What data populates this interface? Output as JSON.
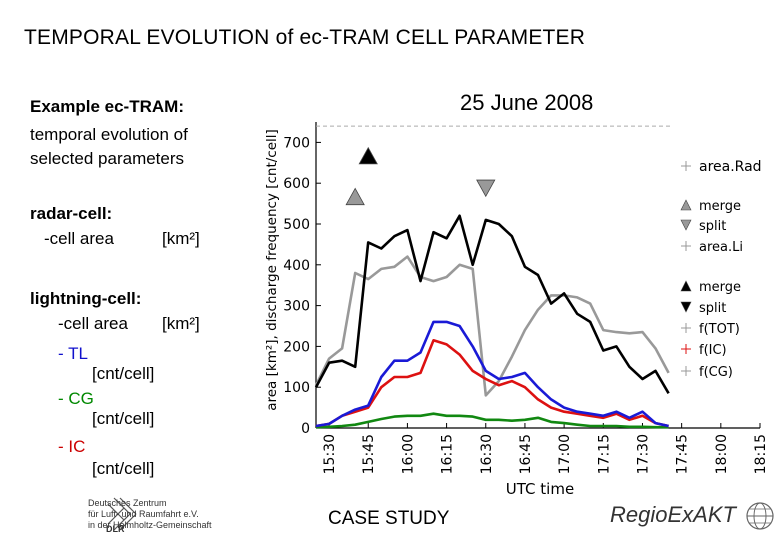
{
  "page": {
    "title": "TEMPORAL EVOLUTION of ec-TRAM CELL PARAMETER",
    "footer_label": "CASE STUDY"
  },
  "left_panel": {
    "example_heading": "Example ec-TRAM:",
    "example_sub1": "temporal evolution of",
    "example_sub2": "selected parameters",
    "radar_heading": "radar-cell:",
    "radar_item_label": "-cell area",
    "radar_item_unit": "[km²]",
    "lightning_heading": "lightning-cell:",
    "lightning_item_label": "-cell area",
    "lightning_item_unit": "[km²]",
    "tl_label": "- TL",
    "tl_unit": "[cnt/cell]",
    "cg_label": "- CG",
    "cg_unit": "[cnt/cell]",
    "ic_label": "- IC",
    "ic_unit": "[cnt/cell]"
  },
  "logos": {
    "dlr_short": "DLR",
    "dlr_line1": "Deutsches Zentrum",
    "dlr_line2": "für Luft- und Raumfahrt e.V.",
    "dlr_line3": "in der Helmholtz-Gemeinschaft",
    "regio": "RegioExAKT"
  },
  "colors": {
    "area_rad": "#999999",
    "area_li": "#000000",
    "tot": "#1a1ad6",
    "ic": "#dd1111",
    "cg": "#118811"
  },
  "chart_data": {
    "type": "line",
    "title": "25 June 2008",
    "xlabel": "UTC time",
    "ylabel": "area [km²], discharge frequency [cnt/cell]",
    "ylim": [
      0,
      750
    ],
    "yticks": [
      0,
      100,
      200,
      300,
      400,
      500,
      600,
      700
    ],
    "xtick_labels": [
      "15:30",
      "15:45",
      "16:00",
      "16:15",
      "16:30",
      "16:45",
      "17:00",
      "17:15",
      "17:30",
      "17:45",
      "18:00",
      "18:15"
    ],
    "x": [
      "15:25",
      "15:30",
      "15:35",
      "15:40",
      "15:45",
      "15:50",
      "15:55",
      "16:00",
      "16:05",
      "16:10",
      "16:15",
      "16:20",
      "16:25",
      "16:30",
      "16:35",
      "16:40",
      "16:45",
      "16:50",
      "16:55",
      "17:00",
      "17:05",
      "17:10",
      "17:15",
      "17:20",
      "17:25",
      "17:30",
      "17:35",
      "17:40",
      "17:45"
    ],
    "series": [
      {
        "name": "area.Rad",
        "color": "#999999",
        "values": [
          105,
          170,
          195,
          380,
          365,
          390,
          395,
          420,
          370,
          360,
          370,
          400,
          390,
          80,
          115,
          175,
          240,
          290,
          325,
          325,
          320,
          305,
          240,
          235,
          232,
          235,
          195,
          135,
          null
        ]
      },
      {
        "name": "area.Li",
        "color": "#000000",
        "values": [
          100,
          160,
          165,
          150,
          455,
          440,
          470,
          485,
          360,
          480,
          465,
          520,
          400,
          510,
          500,
          470,
          395,
          375,
          305,
          330,
          280,
          260,
          190,
          200,
          150,
          120,
          140,
          85,
          null
        ]
      },
      {
        "name": "f(TOT)",
        "color": "#1a1ad6",
        "values": [
          5,
          10,
          30,
          45,
          55,
          125,
          165,
          165,
          185,
          260,
          260,
          250,
          200,
          140,
          120,
          125,
          135,
          100,
          70,
          50,
          40,
          35,
          30,
          40,
          25,
          40,
          12,
          5,
          null
        ]
      },
      {
        "name": "f(IC)",
        "color": "#dd1111",
        "values": [
          5,
          10,
          30,
          40,
          50,
          100,
          125,
          125,
          135,
          215,
          205,
          180,
          140,
          120,
          105,
          115,
          100,
          70,
          50,
          40,
          35,
          30,
          25,
          35,
          20,
          30,
          12,
          5,
          null
        ]
      },
      {
        "name": "f(CG)",
        "color": "#118811",
        "values": [
          2,
          3,
          5,
          8,
          15,
          22,
          28,
          30,
          30,
          35,
          30,
          30,
          28,
          20,
          20,
          18,
          20,
          25,
          15,
          12,
          8,
          5,
          5,
          5,
          3,
          3,
          2,
          2,
          null
        ]
      }
    ],
    "markers": [
      {
        "name": "merge",
        "kind": "area",
        "x": "15:40",
        "y": 565,
        "shape": "up",
        "color": "#999999"
      },
      {
        "name": "merge",
        "kind": "lightning",
        "x": "15:45",
        "y": 665,
        "shape": "up",
        "color": "#000000"
      },
      {
        "name": "split",
        "kind": "area",
        "x": "16:30",
        "y": 590,
        "shape": "down",
        "color": "#999999"
      }
    ],
    "legend": {
      "placement": "right",
      "entries": [
        {
          "label": "area.Rad",
          "marker": "plus",
          "color": "#999999"
        },
        {
          "label": "merge",
          "marker": "up",
          "color": "#999999"
        },
        {
          "label": "split",
          "marker": "down",
          "color": "#999999"
        },
        {
          "label": "area.Li",
          "marker": "plus",
          "color": "#999999"
        },
        {
          "label": "merge",
          "marker": "up",
          "color": "#000000"
        },
        {
          "label": "split",
          "marker": "down",
          "color": "#000000"
        },
        {
          "label": "f(TOT)",
          "marker": "plus",
          "color": "#999999"
        },
        {
          "label": "f(IC)",
          "marker": "plus",
          "color": "#dd1111"
        },
        {
          "label": "f(CG)",
          "marker": "plus",
          "color": "#999999"
        }
      ]
    },
    "grid": false
  }
}
